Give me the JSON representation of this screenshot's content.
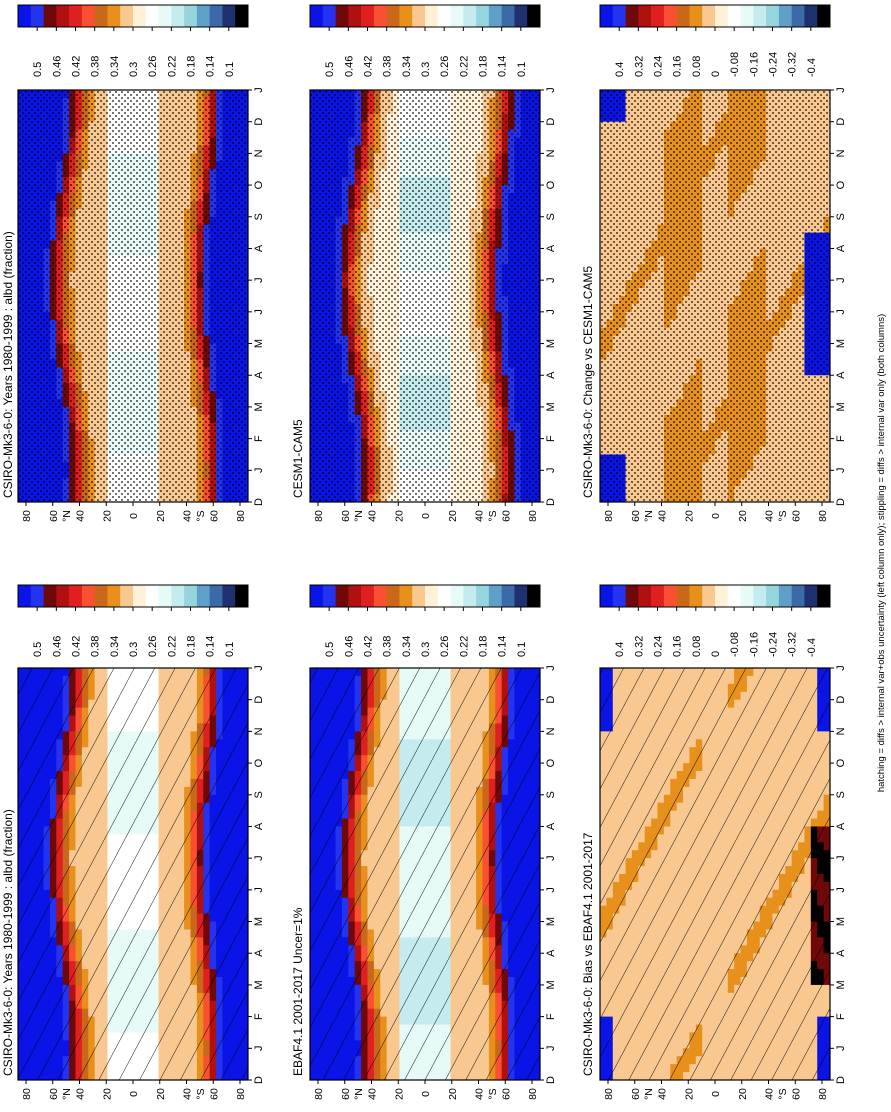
{
  "footnote": "hatching = diffs > internal var+obs uncertainty (left column only); stippling = diffs > internal var only (both columns)",
  "colors": {
    "abs_scale": [
      "#0a14e6",
      "#2433f0",
      "#6f0808",
      "#b01010",
      "#e02020",
      "#f85030",
      "#c86818",
      "#e8901c",
      "#f8c890",
      "#fff0d8",
      "#ffffff",
      "#e6faf8",
      "#c4ecef",
      "#96d4de",
      "#5ea0c8",
      "#3a6aa8",
      "#1e3070",
      "#000000"
    ],
    "diff_scale": [
      "#0a14e6",
      "#2433f0",
      "#6f0808",
      "#b01010",
      "#e02020",
      "#f85030",
      "#c86818",
      "#e8901c",
      "#f8c890",
      "#fff0d8",
      "#ffffff",
      "#e6faf8",
      "#c4ecef",
      "#96d4de",
      "#5ea0c8",
      "#3a6aa8",
      "#1e3070",
      "#000000"
    ]
  },
  "chart_data": [
    {
      "type": "heatmap",
      "position_word": "row-1-left",
      "title": "CSIRO-Mk3-6-0: Years 1980-1999 : albd (fraction)",
      "x_ticks": [
        "D",
        "J",
        "F",
        "M",
        "A",
        "M",
        "J",
        "J",
        "A",
        "S",
        "O",
        "N",
        "D",
        "J"
      ],
      "y_ticks": [
        "80",
        "60",
        "40",
        "20",
        "0",
        "20",
        "40",
        "60",
        "80"
      ],
      "y_suffix_n": "°N",
      "y_suffix_s": "°S",
      "colorbar_labels": [
        "0.5",
        "0.46",
        "0.42",
        "0.38",
        "0.34",
        "0.3",
        "0.26",
        "0.22",
        "0.18",
        "0.14",
        "0.1"
      ],
      "field": "abs",
      "hatching": true,
      "stippling": false
    },
    {
      "type": "heatmap",
      "position_word": "row-1-right",
      "title": "CSIRO-Mk3-6-0: Years 1980-1999 : albd (fraction)",
      "x_ticks": [
        "D",
        "J",
        "F",
        "M",
        "A",
        "M",
        "J",
        "J",
        "A",
        "S",
        "O",
        "N",
        "D",
        "J"
      ],
      "y_ticks": [
        "80",
        "60",
        "40",
        "20",
        "0",
        "20",
        "40",
        "60",
        "80"
      ],
      "y_suffix_n": "°N",
      "y_suffix_s": "°S",
      "colorbar_labels": [
        "0.5",
        "0.46",
        "0.42",
        "0.38",
        "0.34",
        "0.3",
        "0.26",
        "0.22",
        "0.18",
        "0.14",
        "0.1"
      ],
      "field": "abs",
      "hatching": false,
      "stippling": true
    },
    {
      "type": "heatmap",
      "position_word": "row-2-left",
      "title": "EBAF4.1 2001-2017 Uncer=1%",
      "x_ticks": [
        "D",
        "J",
        "F",
        "M",
        "A",
        "M",
        "J",
        "J",
        "A",
        "S",
        "O",
        "N",
        "D",
        "J"
      ],
      "y_ticks": [
        "80",
        "60",
        "40",
        "20",
        "0",
        "20",
        "40",
        "60",
        "80"
      ],
      "y_suffix_n": "°N",
      "y_suffix_s": "°S",
      "colorbar_labels": [
        "0.5",
        "0.46",
        "0.42",
        "0.38",
        "0.34",
        "0.3",
        "0.26",
        "0.22",
        "0.18",
        "0.14",
        "0.1"
      ],
      "field": "obs",
      "hatching": true,
      "stippling": false
    },
    {
      "type": "heatmap",
      "position_word": "row-2-right",
      "title": "CESM1-CAM5",
      "x_ticks": [
        "D",
        "J",
        "F",
        "M",
        "A",
        "M",
        "J",
        "J",
        "A",
        "S",
        "O",
        "N",
        "D",
        "J"
      ],
      "y_ticks": [
        "80",
        "60",
        "40",
        "20",
        "0",
        "20",
        "40",
        "60",
        "80"
      ],
      "y_suffix_n": "°N",
      "y_suffix_s": "°S",
      "colorbar_labels": [
        "0.5",
        "0.46",
        "0.42",
        "0.38",
        "0.34",
        "0.3",
        "0.26",
        "0.22",
        "0.18",
        "0.14",
        "0.1"
      ],
      "field": "abs2",
      "hatching": false,
      "stippling": true
    },
    {
      "type": "heatmap",
      "position_word": "row-3-left",
      "title": "CSIRO-Mk3-6-0: Bias vs EBAF4.1 2001-2017",
      "x_ticks": [
        "D",
        "J",
        "F",
        "M",
        "A",
        "M",
        "J",
        "J",
        "A",
        "S",
        "O",
        "N",
        "D",
        "J"
      ],
      "y_ticks": [
        "80",
        "60",
        "40",
        "20",
        "0",
        "20",
        "40",
        "60",
        "80"
      ],
      "y_suffix_n": "°N",
      "y_suffix_s": "°S",
      "colorbar_labels": [
        "0.4",
        "0.32",
        "0.24",
        "0.16",
        "0.08",
        "0",
        "-0.08",
        "-0.16",
        "-0.24",
        "-0.32",
        "-0.4"
      ],
      "field": "bias",
      "hatching": true,
      "stippling": false
    },
    {
      "type": "heatmap",
      "position_word": "row-3-right",
      "title": "CSIRO-Mk3-6-0: Change vs CESM1-CAM5",
      "x_ticks": [
        "D",
        "J",
        "F",
        "M",
        "A",
        "M",
        "J",
        "J",
        "A",
        "S",
        "O",
        "N",
        "D",
        "J"
      ],
      "y_ticks": [
        "80",
        "60",
        "40",
        "20",
        "0",
        "20",
        "40",
        "60",
        "80"
      ],
      "y_suffix_n": "°N",
      "y_suffix_s": "°S",
      "colorbar_labels": [
        "0.4",
        "0.32",
        "0.24",
        "0.16",
        "0.08",
        "0",
        "-0.08",
        "-0.16",
        "-0.24",
        "-0.32",
        "-0.4"
      ],
      "field": "change",
      "hatching": false,
      "stippling": true
    }
  ]
}
